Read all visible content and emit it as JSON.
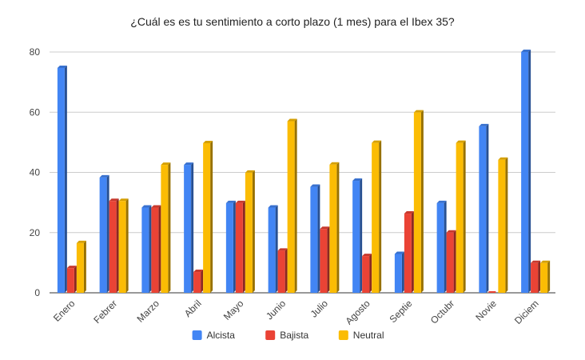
{
  "chart_data": {
    "type": "bar",
    "title": "¿Cuál es es tu sentimiento a corto plazo (1 mes) para el Ibex 35?",
    "xlabel": "",
    "ylabel": "",
    "categories": [
      "Enero",
      "Febrer",
      "Marzo",
      "Abril",
      "Mayo",
      "Junio",
      "Julio",
      "Agosto",
      "Septie",
      "Octubr",
      "Novie",
      "Diciem"
    ],
    "series": [
      {
        "name": "Alcista",
        "color": "#4285f4",
        "values": [
          74.7,
          38.3,
          28.3,
          42.5,
          29.8,
          28.3,
          35.2,
          37.2,
          12.9,
          29.8,
          55.3,
          80
        ]
      },
      {
        "name": "Bajista",
        "color": "#ea4335",
        "values": [
          8.2,
          30.5,
          28.3,
          6.9,
          29.8,
          14,
          21.2,
          12.2,
          26.3,
          20,
          0,
          9.9
        ]
      },
      {
        "name": "Neutral",
        "color": "#fbbc04",
        "values": [
          16.5,
          30.5,
          42.5,
          49.7,
          39.9,
          57,
          42.6,
          49.8,
          59.9,
          49.8,
          44.2,
          9.9
        ]
      }
    ],
    "ylim": [
      0,
      80
    ],
    "yticks": [
      0,
      20,
      40,
      60,
      80
    ],
    "grid": true,
    "legend_position": "bottom",
    "style": "3d-bars"
  }
}
